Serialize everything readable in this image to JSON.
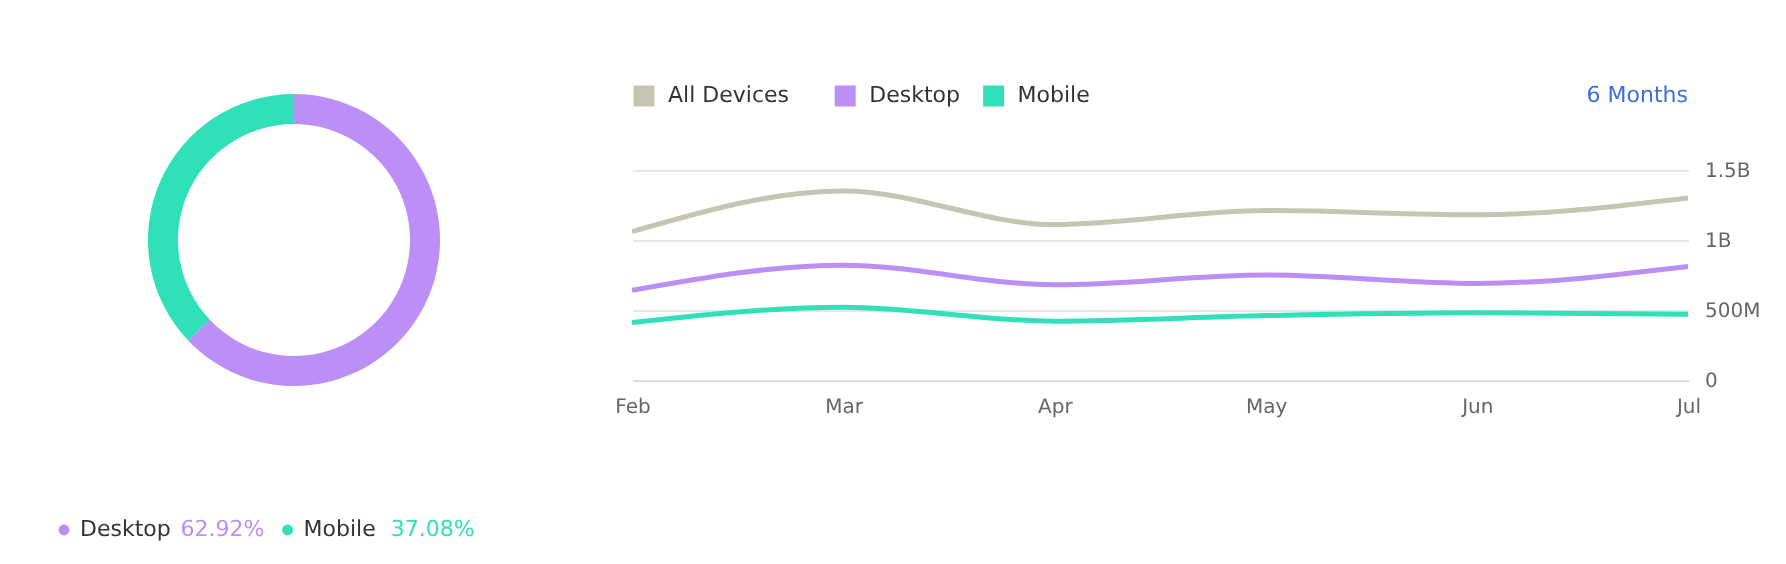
{
  "chart_data": [
    {
      "type": "donut",
      "categories": [
        "Desktop",
        "Mobile"
      ],
      "values": [
        62.92,
        37.08
      ],
      "colors": [
        "#bb8ff5",
        "#2fe0b9"
      ],
      "value_labels": [
        "62.92%",
        "37.08%"
      ],
      "legend": "bottom left"
    },
    {
      "type": "line",
      "categories": [
        "Feb",
        "Mar",
        "Apr",
        "May",
        "Jun",
        "Jul"
      ],
      "series": [
        {
          "name": "All Devices",
          "color": "#c5c5b2",
          "values": [
            1060000000,
            1350000000,
            1110000000,
            1210000000,
            1180000000,
            1300000000
          ]
        },
        {
          "name": "Desktop",
          "color": "#bb8ff5",
          "values": [
            640000000,
            820000000,
            680000000,
            750000000,
            690000000,
            810000000
          ]
        },
        {
          "name": "Mobile",
          "color": "#2fe0b9",
          "values": [
            410000000,
            520000000,
            420000000,
            460000000,
            480000000,
            470000000
          ]
        }
      ],
      "ylim": [
        0,
        1500000000
      ],
      "yticks": [
        0,
        {
          "value": 500000000,
          "label": "500M"
        },
        {
          "value": 1000000000,
          "label": "1B"
        },
        {
          "value": 1500000000,
          "label": "1.5B"
        }
      ],
      "grid": "y",
      "legend": "top left",
      "annotations": [
        "6 Months"
      ]
    }
  ]
}
